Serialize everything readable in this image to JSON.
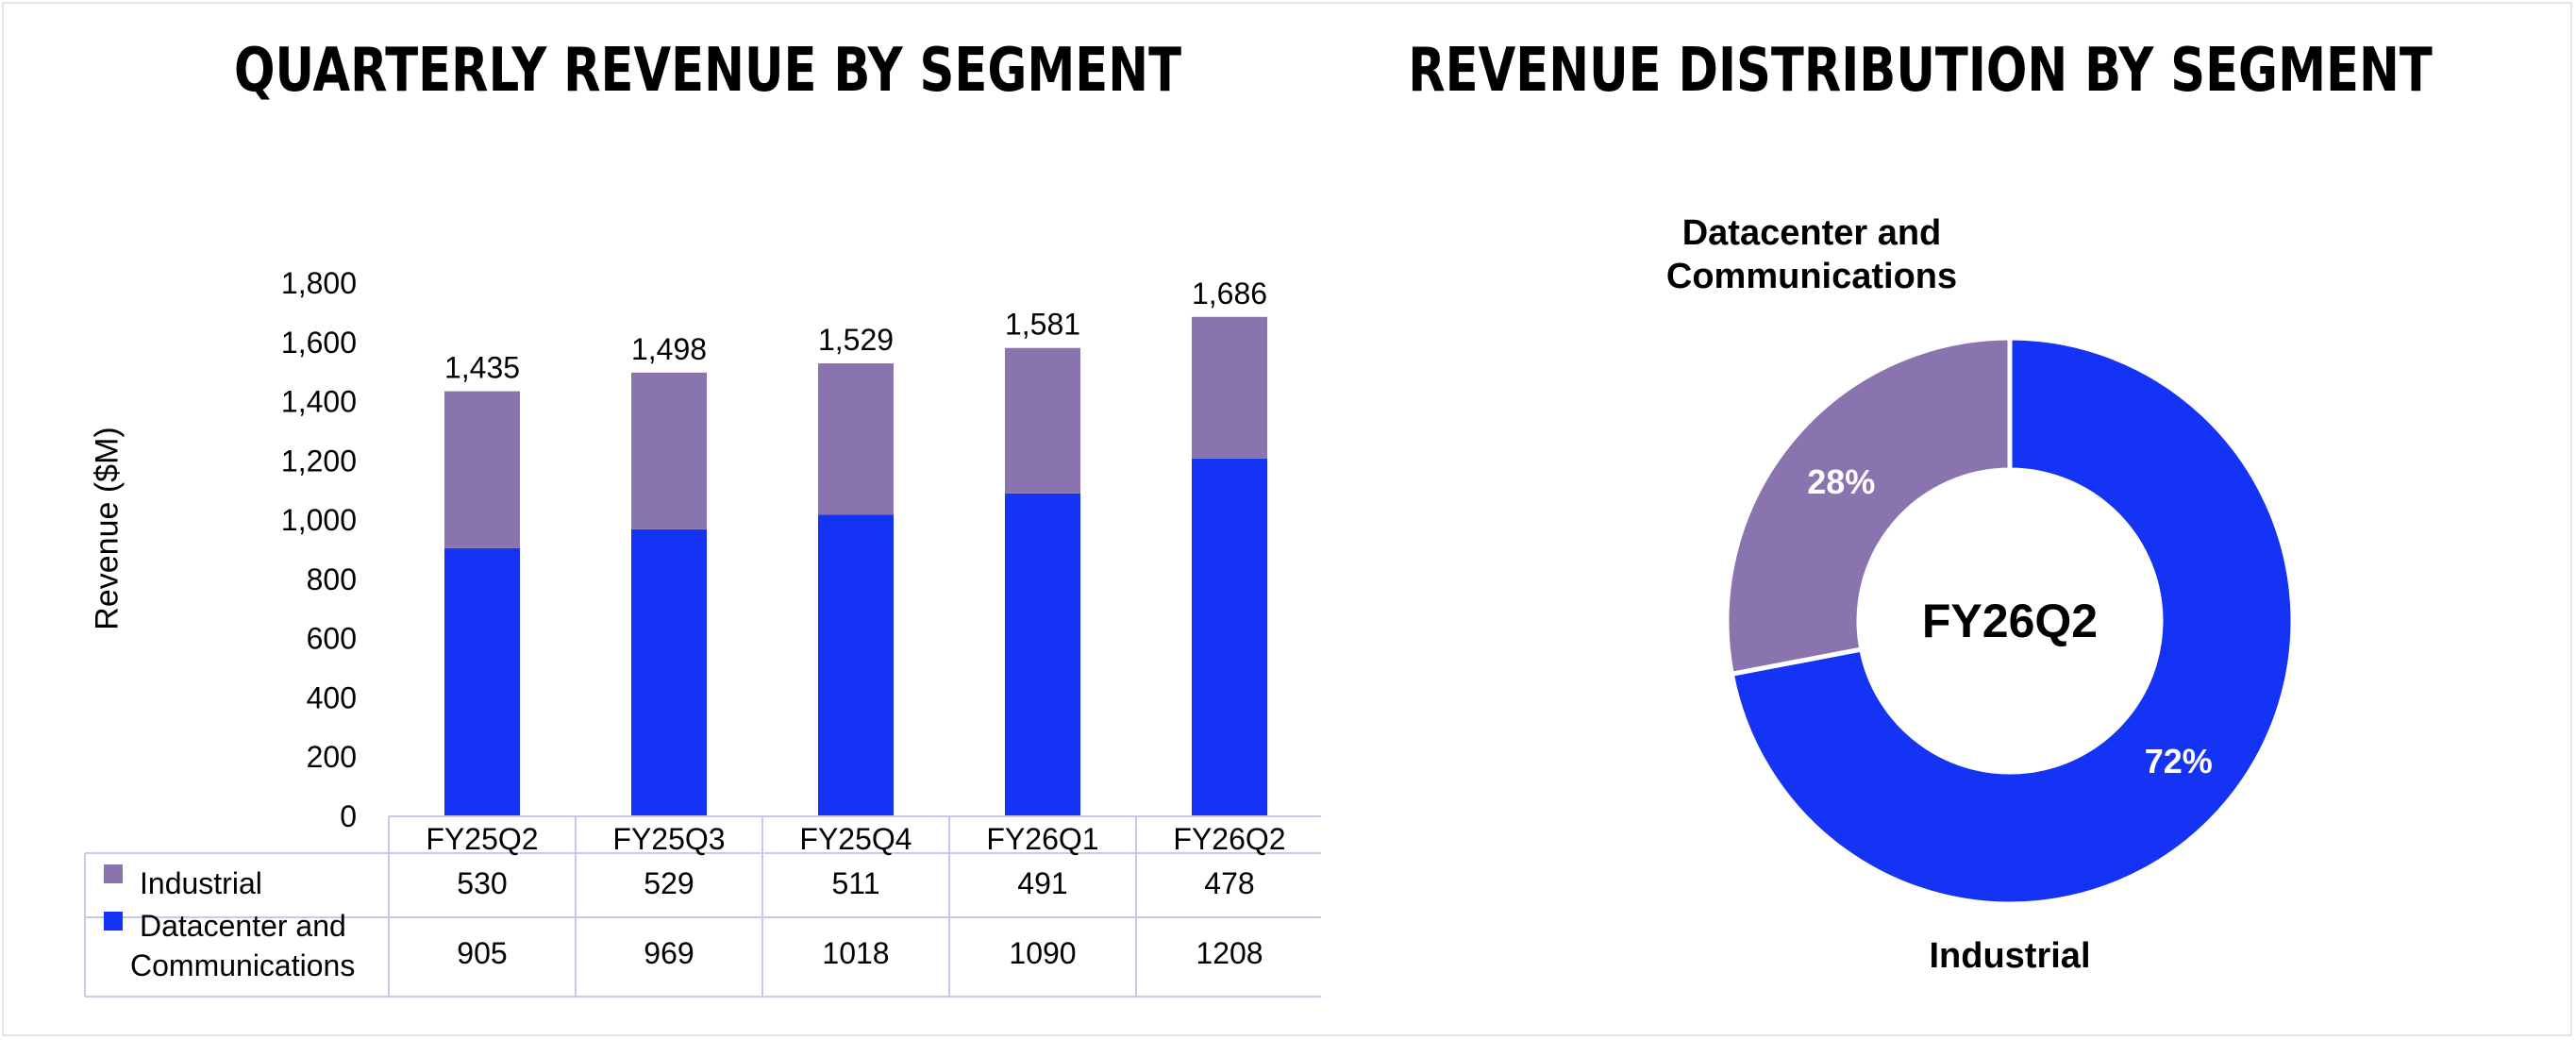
{
  "titles": {
    "left": "QUARTERLY REVENUE BY SEGMENT",
    "right": "REVENUE DISTRIBUTION BY SEGMENT"
  },
  "chart_data": [
    {
      "type": "bar",
      "stacked": true,
      "title": "QUARTERLY REVENUE BY SEGMENT",
      "ylabel": "Revenue ($M)",
      "ylim": [
        0,
        1800
      ],
      "yticks": [
        "0",
        "200",
        "400",
        "600",
        "800",
        "1,000",
        "1,200",
        "1,400",
        "1,600",
        "1,800"
      ],
      "categories": [
        "FY25Q2",
        "FY25Q3",
        "FY25Q4",
        "FY26Q1",
        "FY26Q2"
      ],
      "series": [
        {
          "name": "Datacenter and Communications",
          "color": "#1533f5",
          "values": [
            905,
            969,
            1018,
            1090,
            1208
          ]
        },
        {
          "name": "Industrial",
          "color": "#8a74b0",
          "values": [
            530,
            529,
            511,
            491,
            478
          ]
        }
      ],
      "total_labels": [
        "1,435",
        "1,498",
        "1,529",
        "1,581",
        "1,686"
      ],
      "data_table": {
        "rows": [
          {
            "legend": [
              "Industrial"
            ],
            "color": "#8a74b0",
            "values": [
              "530",
              "529",
              "511",
              "491",
              "478"
            ]
          },
          {
            "legend": [
              "Datacenter and",
              "Communications"
            ],
            "color": "#1533f5",
            "values": [
              "905",
              "969",
              "1018",
              "1090",
              "1208"
            ]
          }
        ]
      }
    },
    {
      "type": "pie",
      "donut": true,
      "title": "REVENUE DISTRIBUTION BY SEGMENT",
      "center_label": "FY26Q2",
      "slices": [
        {
          "name": "Datacenter and Communications",
          "value": 72,
          "label": "72%",
          "color": "#1533f5",
          "outer_label": [
            "Datacenter and",
            "Communications"
          ]
        },
        {
          "name": "Industrial",
          "value": 28,
          "label": "28%",
          "color": "#8a74b0",
          "outer_label": [
            "Industrial"
          ]
        }
      ]
    }
  ]
}
